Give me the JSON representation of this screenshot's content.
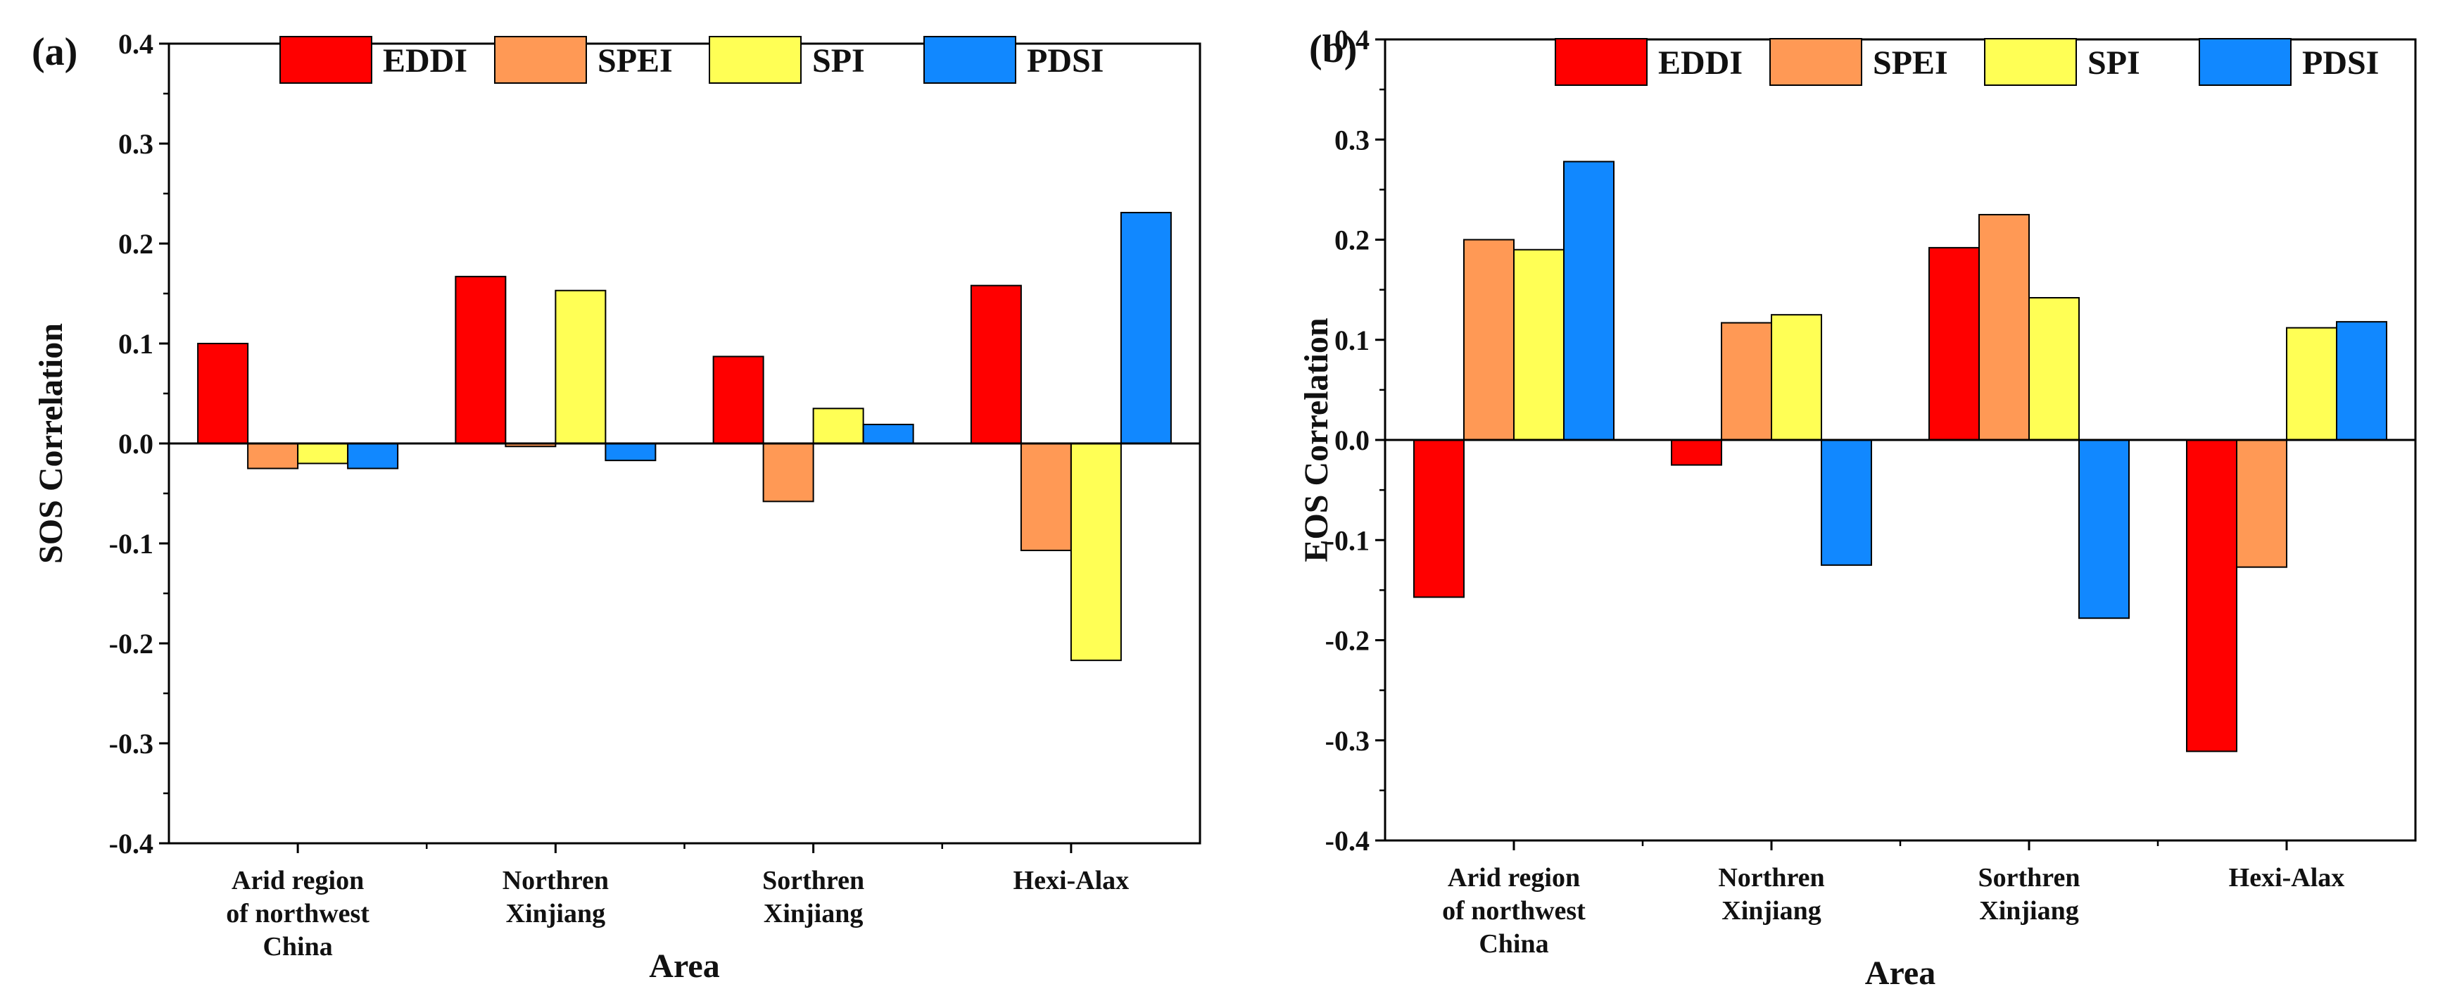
{
  "chart_data": [
    {
      "type": "bar",
      "panel_label": "(a)",
      "title": "",
      "xlabel": "Area",
      "ylabel": "SOS Correlation",
      "ylim": [
        -0.4,
        0.4
      ],
      "yticks": [
        "-0.4",
        "-0.3",
        "-0.2",
        "-0.1",
        "0.0",
        "0.1",
        "0.2",
        "0.3",
        "0.4"
      ],
      "categories": [
        [
          "Arid region",
          "of northwest",
          "China"
        ],
        [
          "Northren",
          "Xinjiang"
        ],
        [
          "Sorthren",
          "Xinjiang"
        ],
        [
          "Hexi-Alax"
        ]
      ],
      "series": [
        {
          "name": "EDDI",
          "color": "#ff0000",
          "values": [
            0.1,
            0.167,
            0.087,
            0.158
          ]
        },
        {
          "name": "SPEI",
          "color": "#ff9955",
          "values": [
            -0.025,
            -0.003,
            -0.058,
            -0.107
          ]
        },
        {
          "name": "SPI",
          "color": "#ffff55",
          "values": [
            -0.02,
            0.153,
            0.035,
            -0.217
          ]
        },
        {
          "name": "PDSI",
          "color": "#1188ff",
          "values": [
            -0.025,
            -0.017,
            0.019,
            0.231
          ]
        }
      ],
      "legend_position": "top"
    },
    {
      "type": "bar",
      "panel_label": "(b)",
      "title": "",
      "xlabel": "Area",
      "ylabel": "EOS Correlation",
      "ylim": [
        -0.4,
        0.4
      ],
      "yticks": [
        "-0.4",
        "-0.3",
        "-0.2",
        "-0.1",
        "0.0",
        "0.1",
        "0.2",
        "0.3",
        "0.4"
      ],
      "categories": [
        [
          "Arid region",
          "of northwest",
          "China"
        ],
        [
          "Northren",
          "Xinjiang"
        ],
        [
          "Sorthren",
          "Xinjiang"
        ],
        [
          "Hexi-Alax"
        ]
      ],
      "series": [
        {
          "name": "EDDI",
          "color": "#ff0000",
          "values": [
            -0.157,
            -0.025,
            0.192,
            -0.311
          ]
        },
        {
          "name": "SPEI",
          "color": "#ff9955",
          "values": [
            0.2,
            0.117,
            0.225,
            -0.127
          ]
        },
        {
          "name": "SPI",
          "color": "#ffff55",
          "values": [
            0.19,
            0.125,
            0.142,
            0.112
          ]
        },
        {
          "name": "PDSI",
          "color": "#1188ff",
          "values": [
            0.278,
            -0.125,
            -0.178,
            0.118
          ]
        }
      ],
      "legend_position": "top"
    }
  ]
}
